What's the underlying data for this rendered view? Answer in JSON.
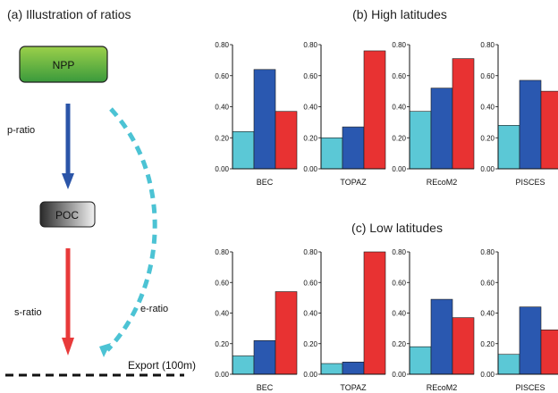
{
  "panel_a": {
    "title": "(a) Illustration of ratios",
    "npp_label": "NPP",
    "poc_label": "POC",
    "p_ratio_label": "p-ratio",
    "s_ratio_label": "s-ratio",
    "e_ratio_label": "e-ratio",
    "export_label": "Export (100m)",
    "colors": {
      "npp_top": "#9bd04a",
      "npp_bottom": "#3a9a3c",
      "poc_dark": "#2a2a2a",
      "p_arrow": "#2b55a8",
      "s_arrow": "#e83a3a",
      "e_arrow": "#4cc3d4"
    }
  },
  "panel_b_title": "(b) High latitudes",
  "panel_c_title": "(c) Low latitudes",
  "series_colors": [
    "#5bc8d6",
    "#2a58b0",
    "#e83232"
  ],
  "chart_data": [
    {
      "type": "bar",
      "title": "(b) High latitudes",
      "model": "BEC",
      "ylim": [
        0,
        0.8
      ],
      "yticks": [
        "0.00",
        "0.20",
        "0.40",
        "0.60",
        "0.80"
      ],
      "values": [
        0.24,
        0.64,
        0.37
      ]
    },
    {
      "type": "bar",
      "title": "(b) High latitudes",
      "model": "TOPAZ",
      "ylim": [
        0,
        0.8
      ],
      "yticks": [
        "0.00",
        "0.20",
        "0.40",
        "0.60",
        "0.80"
      ],
      "values": [
        0.2,
        0.27,
        0.76
      ]
    },
    {
      "type": "bar",
      "title": "(b) High latitudes",
      "model": "REcoM2",
      "ylim": [
        0,
        0.8
      ],
      "yticks": [
        "0.00",
        "0.20",
        "0.40",
        "0.60",
        "0.80"
      ],
      "values": [
        0.37,
        0.52,
        0.71
      ]
    },
    {
      "type": "bar",
      "title": "(b) High latitudes",
      "model": "PISCES",
      "ylim": [
        0,
        0.8
      ],
      "yticks": [
        "0.00",
        "0.20",
        "0.40",
        "0.60",
        "0.80"
      ],
      "values": [
        0.28,
        0.57,
        0.5
      ]
    },
    {
      "type": "bar",
      "title": "(c) Low latitudes",
      "model": "BEC",
      "ylim": [
        0,
        0.8
      ],
      "yticks": [
        "0.00",
        "0.20",
        "0.40",
        "0.60",
        "0.80"
      ],
      "values": [
        0.12,
        0.22,
        0.54
      ]
    },
    {
      "type": "bar",
      "title": "(c) Low latitudes",
      "model": "TOPAZ",
      "ylim": [
        0,
        0.8
      ],
      "yticks": [
        "0.00",
        "0.20",
        "0.40",
        "0.60",
        "0.80"
      ],
      "values": [
        0.07,
        0.08,
        0.8
      ]
    },
    {
      "type": "bar",
      "title": "(c) Low latitudes",
      "model": "REcoM2",
      "ylim": [
        0,
        0.8
      ],
      "yticks": [
        "0.00",
        "0.20",
        "0.40",
        "0.60",
        "0.80"
      ],
      "values": [
        0.18,
        0.49,
        0.37
      ]
    },
    {
      "type": "bar",
      "title": "(c) Low latitudes",
      "model": "PISCES",
      "ylim": [
        0,
        0.8
      ],
      "yticks": [
        "0.00",
        "0.20",
        "0.40",
        "0.60",
        "0.80"
      ],
      "values": [
        0.13,
        0.44,
        0.29
      ]
    }
  ]
}
